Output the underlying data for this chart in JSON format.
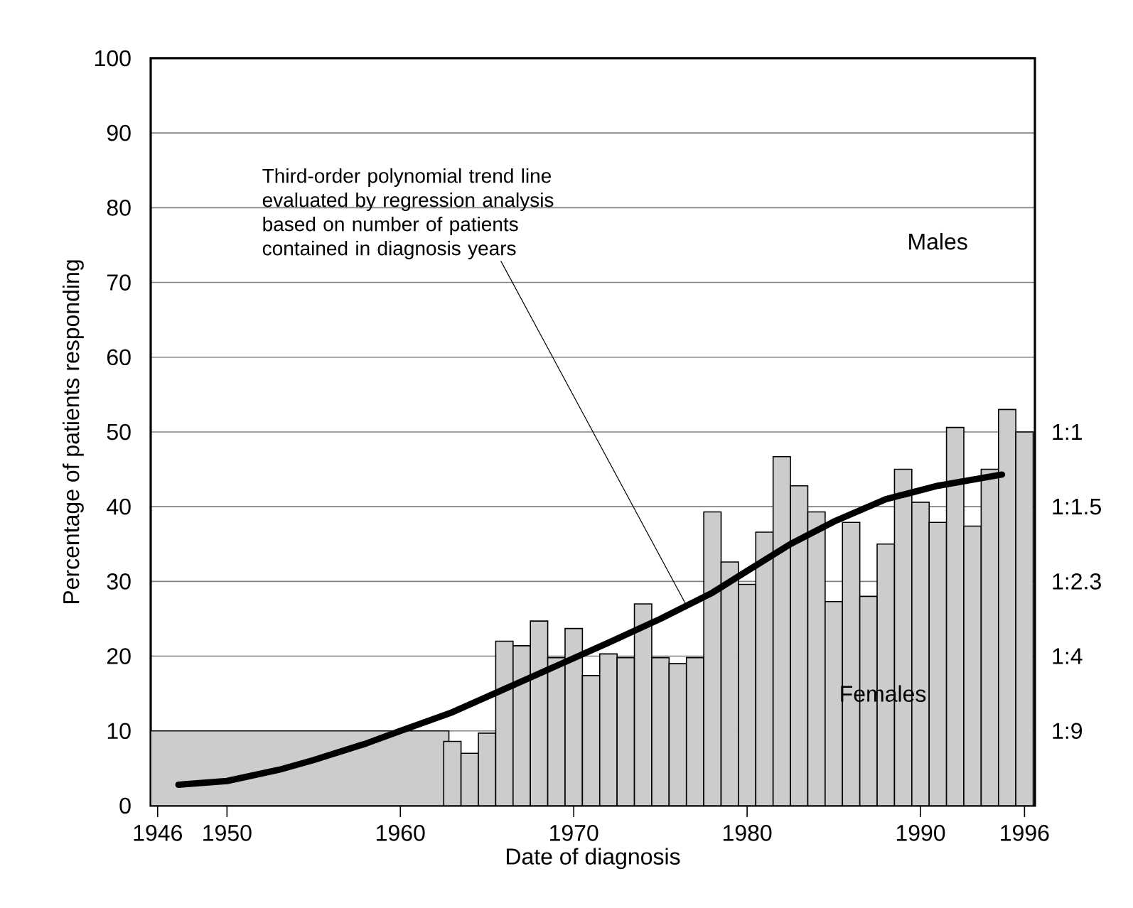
{
  "chart_data": {
    "type": "bar",
    "xlabel": "Date of diagnosis",
    "ylabel": "Percentage of patients responding",
    "x": [
      1963,
      1964,
      1965,
      1966,
      1967,
      1968,
      1969,
      1970,
      1971,
      1972,
      1973,
      1974,
      1975,
      1976,
      1977,
      1978,
      1979,
      1980,
      1981,
      1982,
      1983,
      1984,
      1985,
      1986,
      1987,
      1988,
      1989,
      1990,
      1991,
      1992,
      1993,
      1994,
      1995,
      1996
    ],
    "series": [
      {
        "type": "area",
        "color": "#cccccc",
        "x": [
          1945.6,
          1962.8
        ],
        "values": [
          10,
          10
        ]
      },
      {
        "color": "#cccccc",
        "values": [
          8.6,
          7.0,
          9.7,
          22.0,
          21.4,
          24.7,
          19.8,
          23.7,
          17.4,
          20.3,
          19.8,
          27.0,
          19.8,
          19.0,
          19.8,
          39.3,
          32.6,
          29.6,
          36.6,
          46.7,
          42.8,
          39.3,
          27.3,
          37.9,
          28.0,
          35.0,
          45.0,
          40.6,
          37.9,
          50.6,
          37.4,
          45.0,
          53.0,
          50.0
        ]
      },
      {
        "type": "line",
        "color": "#000000",
        "x": [
          1947.2,
          1950,
          1953,
          1955,
          1958,
          1960,
          1963,
          1966,
          1969,
          1972,
          1975,
          1978,
          1980,
          1982.5,
          1985,
          1988,
          1991,
          1994.7
        ],
        "values": [
          2.8,
          3.3,
          4.8,
          6.1,
          8.3,
          10,
          12.5,
          15.6,
          18.7,
          21.8,
          25,
          28.5,
          31.4,
          35,
          38,
          41,
          42.8,
          44.3
        ]
      }
    ],
    "xlim": [
      1945.6,
      1996.6
    ],
    "ylim": [
      0,
      100
    ],
    "xticks": [
      1946,
      1950,
      1960,
      1970,
      1980,
      1990,
      1996
    ],
    "yticks": [
      0,
      10,
      20,
      30,
      40,
      50,
      60,
      70,
      80,
      90,
      100
    ],
    "annotations": [
      {
        "text": "Third-order polynomial trend line evaluated by regression analysis based on number of patients contained in diagnosis years",
        "x": 1976.5,
        "y": 26.8
      },
      "Males",
      "Females",
      "1:1",
      "1:1.5",
      "1:2.3",
      "1:4",
      "1:9"
    ],
    "grid": "y"
  }
}
